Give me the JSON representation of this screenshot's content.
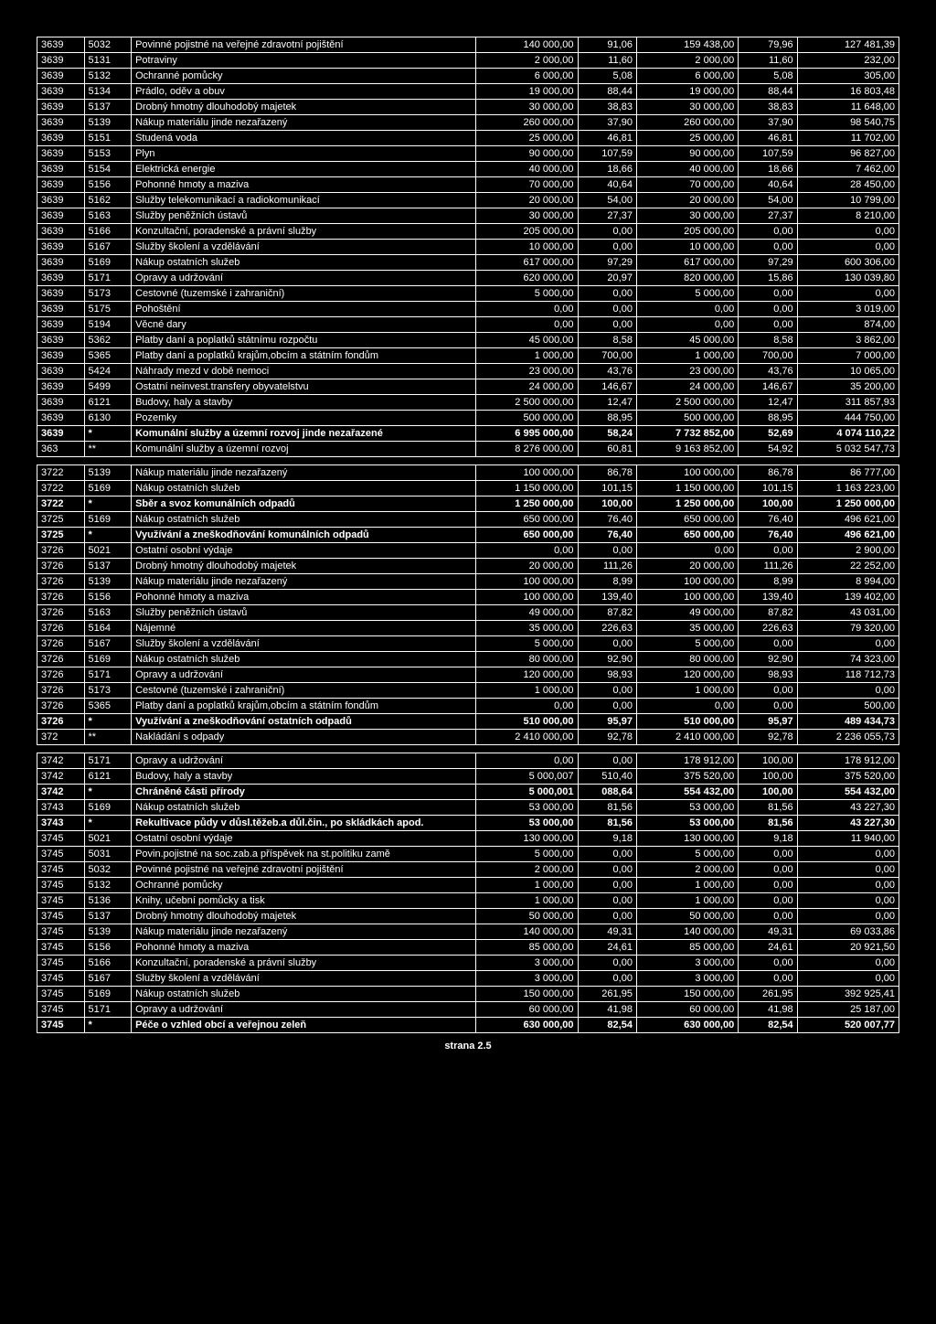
{
  "footer": "strana 2.5",
  "blocks": [
    {
      "rows": [
        {
          "c1": "3639",
          "c2": "5032",
          "c3": "Povinné pojistné na veřejné zdravotní pojištění",
          "c4": "140 000,00",
          "c5": "91,06",
          "c6": "159 438,00",
          "c7": "79,96",
          "c8": "127 481,39"
        },
        {
          "c1": "3639",
          "c2": "5131",
          "c3": "Potraviny",
          "c4": "2 000,00",
          "c5": "11,60",
          "c6": "2 000,00",
          "c7": "11,60",
          "c8": "232,00"
        },
        {
          "c1": "3639",
          "c2": "5132",
          "c3": "Ochranné pomůcky",
          "c4": "6 000,00",
          "c5": "5,08",
          "c6": "6 000,00",
          "c7": "5,08",
          "c8": "305,00"
        },
        {
          "c1": "3639",
          "c2": "5134",
          "c3": "Prádlo, oděv a obuv",
          "c4": "19 000,00",
          "c5": "88,44",
          "c6": "19 000,00",
          "c7": "88,44",
          "c8": "16 803,48"
        },
        {
          "c1": "3639",
          "c2": "5137",
          "c3": "Drobný hmotný dlouhodobý majetek",
          "c4": "30 000,00",
          "c5": "38,83",
          "c6": "30 000,00",
          "c7": "38,83",
          "c8": "11 648,00"
        },
        {
          "c1": "3639",
          "c2": "5139",
          "c3": "Nákup materiálu jinde nezařazený",
          "c4": "260 000,00",
          "c5": "37,90",
          "c6": "260 000,00",
          "c7": "37,90",
          "c8": "98 540,75"
        },
        {
          "c1": "3639",
          "c2": "5151",
          "c3": "Studená voda",
          "c4": "25 000,00",
          "c5": "46,81",
          "c6": "25 000,00",
          "c7": "46,81",
          "c8": "11 702,00"
        },
        {
          "c1": "3639",
          "c2": "5153",
          "c3": "Plyn",
          "c4": "90 000,00",
          "c5": "107,59",
          "c6": "90 000,00",
          "c7": "107,59",
          "c8": "96 827,00"
        },
        {
          "c1": "3639",
          "c2": "5154",
          "c3": "Elektrická energie",
          "c4": "40 000,00",
          "c5": "18,66",
          "c6": "40 000,00",
          "c7": "18,66",
          "c8": "7 462,00"
        },
        {
          "c1": "3639",
          "c2": "5156",
          "c3": "Pohonné hmoty a maziva",
          "c4": "70 000,00",
          "c5": "40,64",
          "c6": "70 000,00",
          "c7": "40,64",
          "c8": "28 450,00"
        },
        {
          "c1": "3639",
          "c2": "5162",
          "c3": "Služby telekomunikací a radiokomunikací",
          "c4": "20 000,00",
          "c5": "54,00",
          "c6": "20 000,00",
          "c7": "54,00",
          "c8": "10 799,00"
        },
        {
          "c1": "3639",
          "c2": "5163",
          "c3": "Služby peněžních ústavů",
          "c4": "30 000,00",
          "c5": "27,37",
          "c6": "30 000,00",
          "c7": "27,37",
          "c8": "8 210,00"
        },
        {
          "c1": "3639",
          "c2": "5166",
          "c3": "Konzultační, poradenské a právní služby",
          "c4": "205 000,00",
          "c5": "0,00",
          "c6": "205 000,00",
          "c7": "0,00",
          "c8": "0,00"
        },
        {
          "c1": "3639",
          "c2": "5167",
          "c3": "Služby školení a vzdělávání",
          "c4": "10 000,00",
          "c5": "0,00",
          "c6": "10 000,00",
          "c7": "0,00",
          "c8": "0,00"
        },
        {
          "c1": "3639",
          "c2": "5169",
          "c3": "Nákup ostatních služeb",
          "c4": "617 000,00",
          "c5": "97,29",
          "c6": "617 000,00",
          "c7": "97,29",
          "c8": "600 306,00"
        },
        {
          "c1": "3639",
          "c2": "5171",
          "c3": "Opravy a udržování",
          "c4": "620 000,00",
          "c5": "20,97",
          "c6": "820 000,00",
          "c7": "15,86",
          "c8": "130 039,80"
        },
        {
          "c1": "3639",
          "c2": "5173",
          "c3": "Cestovné (tuzemské i zahraniční)",
          "c4": "5 000,00",
          "c5": "0,00",
          "c6": "5 000,00",
          "c7": "0,00",
          "c8": "0,00"
        },
        {
          "c1": "3639",
          "c2": "5175",
          "c3": "Pohoštění",
          "c4": "0,00",
          "c5": "0,00",
          "c6": "0,00",
          "c7": "0,00",
          "c8": "3 019,00"
        },
        {
          "c1": "3639",
          "c2": "5194",
          "c3": "Věcné dary",
          "c4": "0,00",
          "c5": "0,00",
          "c6": "0,00",
          "c7": "0,00",
          "c8": "874,00"
        },
        {
          "c1": "3639",
          "c2": "5362",
          "c3": "Platby daní a poplatků státnímu rozpočtu",
          "c4": "45 000,00",
          "c5": "8,58",
          "c6": "45 000,00",
          "c7": "8,58",
          "c8": "3 862,00"
        },
        {
          "c1": "3639",
          "c2": "5365",
          "c3": "Platby daní a poplatků krajům,obcím a státním fondům",
          "c4": "1 000,00",
          "c5": "700,00",
          "c6": "1 000,00",
          "c7": "700,00",
          "c8": "7 000,00"
        },
        {
          "c1": "3639",
          "c2": "5424",
          "c3": "Náhrady mezd v době nemoci",
          "c4": "23 000,00",
          "c5": "43,76",
          "c6": "23 000,00",
          "c7": "43,76",
          "c8": "10 065,00"
        },
        {
          "c1": "3639",
          "c2": "5499",
          "c3": "Ostatní neinvest.transfery obyvatelstvu",
          "c4": "24 000,00",
          "c5": "146,67",
          "c6": "24 000,00",
          "c7": "146,67",
          "c8": "35 200,00"
        },
        {
          "c1": "3639",
          "c2": "6121",
          "c3": "Budovy, haly a stavby",
          "c4": "2 500 000,00",
          "c5": "12,47",
          "c6": "2 500 000,00",
          "c7": "12,47",
          "c8": "311 857,93"
        },
        {
          "c1": "3639",
          "c2": "6130",
          "c3": "Pozemky",
          "c4": "500 000,00",
          "c5": "88,95",
          "c6": "500 000,00",
          "c7": "88,95",
          "c8": "444 750,00"
        },
        {
          "c1": "3639",
          "c2": "*",
          "c3": "Komunální služby a územní rozvoj jinde nezařazené",
          "c4": "6 995 000,00",
          "c5": "58,24",
          "c6": "7 732 852,00",
          "c7": "52,69",
          "c8": "4 074 110,22",
          "bold": true
        },
        {
          "c1": "363",
          "c2": "**",
          "c3": "Komunální služby a územní rozvoj",
          "c4": "8 276 000,00",
          "c5": "60,81",
          "c6": "9 163 852,00",
          "c7": "54,92",
          "c8": "5 032 547,73"
        }
      ]
    },
    {
      "rows": [
        {
          "c1": "3722",
          "c2": "5139",
          "c3": "Nákup materiálu jinde nezařazený",
          "c4": "100 000,00",
          "c5": "86,78",
          "c6": "100 000,00",
          "c7": "86,78",
          "c8": "86 777,00"
        },
        {
          "c1": "3722",
          "c2": "5169",
          "c3": "Nákup ostatních služeb",
          "c4": "1 150 000,00",
          "c5": "101,15",
          "c6": "1 150 000,00",
          "c7": "101,15",
          "c8": "1 163 223,00"
        },
        {
          "c1": "3722",
          "c2": "*",
          "c3": "Sběr a svoz komunálních odpadů",
          "c4": "1 250 000,00",
          "c5": "100,00",
          "c6": "1 250 000,00",
          "c7": "100,00",
          "c8": "1 250 000,00",
          "bold": true
        },
        {
          "c1": "3725",
          "c2": "5169",
          "c3": "Nákup ostatních služeb",
          "c4": "650 000,00",
          "c5": "76,40",
          "c6": "650 000,00",
          "c7": "76,40",
          "c8": "496 621,00"
        },
        {
          "c1": "3725",
          "c2": "*",
          "c3": "Využívání a zneškodňování komunálních odpadů",
          "c4": "650 000,00",
          "c5": "76,40",
          "c6": "650 000,00",
          "c7": "76,40",
          "c8": "496 621,00",
          "bold": true
        },
        {
          "c1": "3726",
          "c2": "5021",
          "c3": "Ostatní osobní výdaje",
          "c4": "0,00",
          "c5": "0,00",
          "c6": "0,00",
          "c7": "0,00",
          "c8": "2 900,00"
        },
        {
          "c1": "3726",
          "c2": "5137",
          "c3": "Drobný hmotný dlouhodobý majetek",
          "c4": "20 000,00",
          "c5": "111,26",
          "c6": "20 000,00",
          "c7": "111,26",
          "c8": "22 252,00"
        },
        {
          "c1": "3726",
          "c2": "5139",
          "c3": "Nákup materiálu jinde nezařazený",
          "c4": "100 000,00",
          "c5": "8,99",
          "c6": "100 000,00",
          "c7": "8,99",
          "c8": "8 994,00"
        },
        {
          "c1": "3726",
          "c2": "5156",
          "c3": "Pohonné hmoty a maziva",
          "c4": "100 000,00",
          "c5": "139,40",
          "c6": "100 000,00",
          "c7": "139,40",
          "c8": "139 402,00"
        },
        {
          "c1": "3726",
          "c2": "5163",
          "c3": "Služby peněžních ústavů",
          "c4": "49 000,00",
          "c5": "87,82",
          "c6": "49 000,00",
          "c7": "87,82",
          "c8": "43 031,00"
        },
        {
          "c1": "3726",
          "c2": "5164",
          "c3": "Nájemné",
          "c4": "35 000,00",
          "c5": "226,63",
          "c6": "35 000,00",
          "c7": "226,63",
          "c8": "79 320,00"
        },
        {
          "c1": "3726",
          "c2": "5167",
          "c3": "Služby školení a vzdělávání",
          "c4": "5 000,00",
          "c5": "0,00",
          "c6": "5 000,00",
          "c7": "0,00",
          "c8": "0,00"
        },
        {
          "c1": "3726",
          "c2": "5169",
          "c3": "Nákup ostatních služeb",
          "c4": "80 000,00",
          "c5": "92,90",
          "c6": "80 000,00",
          "c7": "92,90",
          "c8": "74 323,00"
        },
        {
          "c1": "3726",
          "c2": "5171",
          "c3": "Opravy a udržování",
          "c4": "120 000,00",
          "c5": "98,93",
          "c6": "120 000,00",
          "c7": "98,93",
          "c8": "118 712,73"
        },
        {
          "c1": "3726",
          "c2": "5173",
          "c3": "Cestovné (tuzemské i zahraniční)",
          "c4": "1 000,00",
          "c5": "0,00",
          "c6": "1 000,00",
          "c7": "0,00",
          "c8": "0,00"
        },
        {
          "c1": "3726",
          "c2": "5365",
          "c3": "Platby daní a poplatků krajům,obcím a státním fondům",
          "c4": "0,00",
          "c5": "0,00",
          "c6": "0,00",
          "c7": "0,00",
          "c8": "500,00"
        },
        {
          "c1": "3726",
          "c2": "*",
          "c3": "Využívání a zneškodňování ostatních odpadů",
          "c4": "510 000,00",
          "c5": "95,97",
          "c6": "510 000,00",
          "c7": "95,97",
          "c8": "489 434,73",
          "bold": true
        },
        {
          "c1": "372",
          "c2": "**",
          "c3": "Nakládání s odpady",
          "c4": "2 410 000,00",
          "c5": "92,78",
          "c6": "2 410 000,00",
          "c7": "92,78",
          "c8": "2 236 055,73"
        }
      ]
    },
    {
      "rows": [
        {
          "c1": "3742",
          "c2": "5171",
          "c3": "Opravy a udržování",
          "c4": "0,00",
          "c5": "0,00",
          "c6": "178 912,00",
          "c7": "100,00",
          "c8": "178 912,00"
        },
        {
          "c1": "3742",
          "c2": "6121",
          "c3": "Budovy, haly a stavby",
          "c4": "5 000,007",
          "c5": "510,40",
          "c6": "375 520,00",
          "c7": "100,00",
          "c8": "375 520,00"
        },
        {
          "c1": "3742",
          "c2": "*",
          "c3": "Chráněné části přírody",
          "c4": "5 000,001",
          "c5": "088,64",
          "c6": "554 432,00",
          "c7": "100,00",
          "c8": "554 432,00",
          "bold": true
        },
        {
          "c1": "3743",
          "c2": "5169",
          "c3": "Nákup ostatních služeb",
          "c4": "53 000,00",
          "c5": "81,56",
          "c6": "53 000,00",
          "c7": "81,56",
          "c8": "43 227,30"
        },
        {
          "c1": "3743",
          "c2": "*",
          "c3": "Rekultivace půdy v důsl.těžeb.a důl.čin., po skládkách apod.",
          "c4": "53 000,00",
          "c5": "81,56",
          "c6": "53 000,00",
          "c7": "81,56",
          "c8": "43 227,30",
          "bold": true
        },
        {
          "c1": "3745",
          "c2": "5021",
          "c3": "Ostatní osobní výdaje",
          "c4": "130 000,00",
          "c5": "9,18",
          "c6": "130 000,00",
          "c7": "9,18",
          "c8": "11 940,00"
        },
        {
          "c1": "3745",
          "c2": "5031",
          "c3": "Povin.pojistné na soc.zab.a příspěvek na st.politiku zamě",
          "c4": "5 000,00",
          "c5": "0,00",
          "c6": "5 000,00",
          "c7": "0,00",
          "c8": "0,00"
        },
        {
          "c1": "3745",
          "c2": "5032",
          "c3": "Povinné pojistné na veřejné zdravotní pojištění",
          "c4": "2 000,00",
          "c5": "0,00",
          "c6": "2 000,00",
          "c7": "0,00",
          "c8": "0,00"
        },
        {
          "c1": "3745",
          "c2": "5132",
          "c3": "Ochranné pomůcky",
          "c4": "1 000,00",
          "c5": "0,00",
          "c6": "1 000,00",
          "c7": "0,00",
          "c8": "0,00"
        },
        {
          "c1": "3745",
          "c2": "5136",
          "c3": "Knihy, učební pomůcky a tisk",
          "c4": "1 000,00",
          "c5": "0,00",
          "c6": "1 000,00",
          "c7": "0,00",
          "c8": "0,00"
        },
        {
          "c1": "3745",
          "c2": "5137",
          "c3": "Drobný hmotný dlouhodobý majetek",
          "c4": "50 000,00",
          "c5": "0,00",
          "c6": "50 000,00",
          "c7": "0,00",
          "c8": "0,00"
        },
        {
          "c1": "3745",
          "c2": "5139",
          "c3": "Nákup materiálu jinde nezařazený",
          "c4": "140 000,00",
          "c5": "49,31",
          "c6": "140 000,00",
          "c7": "49,31",
          "c8": "69 033,86"
        },
        {
          "c1": "3745",
          "c2": "5156",
          "c3": "Pohonné hmoty a maziva",
          "c4": "85 000,00",
          "c5": "24,61",
          "c6": "85 000,00",
          "c7": "24,61",
          "c8": "20 921,50"
        },
        {
          "c1": "3745",
          "c2": "5166",
          "c3": "Konzultační, poradenské a právní služby",
          "c4": "3 000,00",
          "c5": "0,00",
          "c6": "3 000,00",
          "c7": "0,00",
          "c8": "0,00"
        },
        {
          "c1": "3745",
          "c2": "5167",
          "c3": "Služby školení a vzdělávání",
          "c4": "3 000,00",
          "c5": "0,00",
          "c6": "3 000,00",
          "c7": "0,00",
          "c8": "0,00"
        },
        {
          "c1": "3745",
          "c2": "5169",
          "c3": "Nákup ostatních služeb",
          "c4": "150 000,00",
          "c5": "261,95",
          "c6": "150 000,00",
          "c7": "261,95",
          "c8": "392 925,41"
        },
        {
          "c1": "3745",
          "c2": "5171",
          "c3": "Opravy a udržování",
          "c4": "60 000,00",
          "c5": "41,98",
          "c6": "60 000,00",
          "c7": "41,98",
          "c8": "25 187,00"
        },
        {
          "c1": "3745",
          "c2": "*",
          "c3": "Péče o vzhled obcí a veřejnou zeleň",
          "c4": "630 000,00",
          "c5": "82,54",
          "c6": "630 000,00",
          "c7": "82,54",
          "c8": "520 007,77",
          "bold": true
        }
      ]
    }
  ]
}
